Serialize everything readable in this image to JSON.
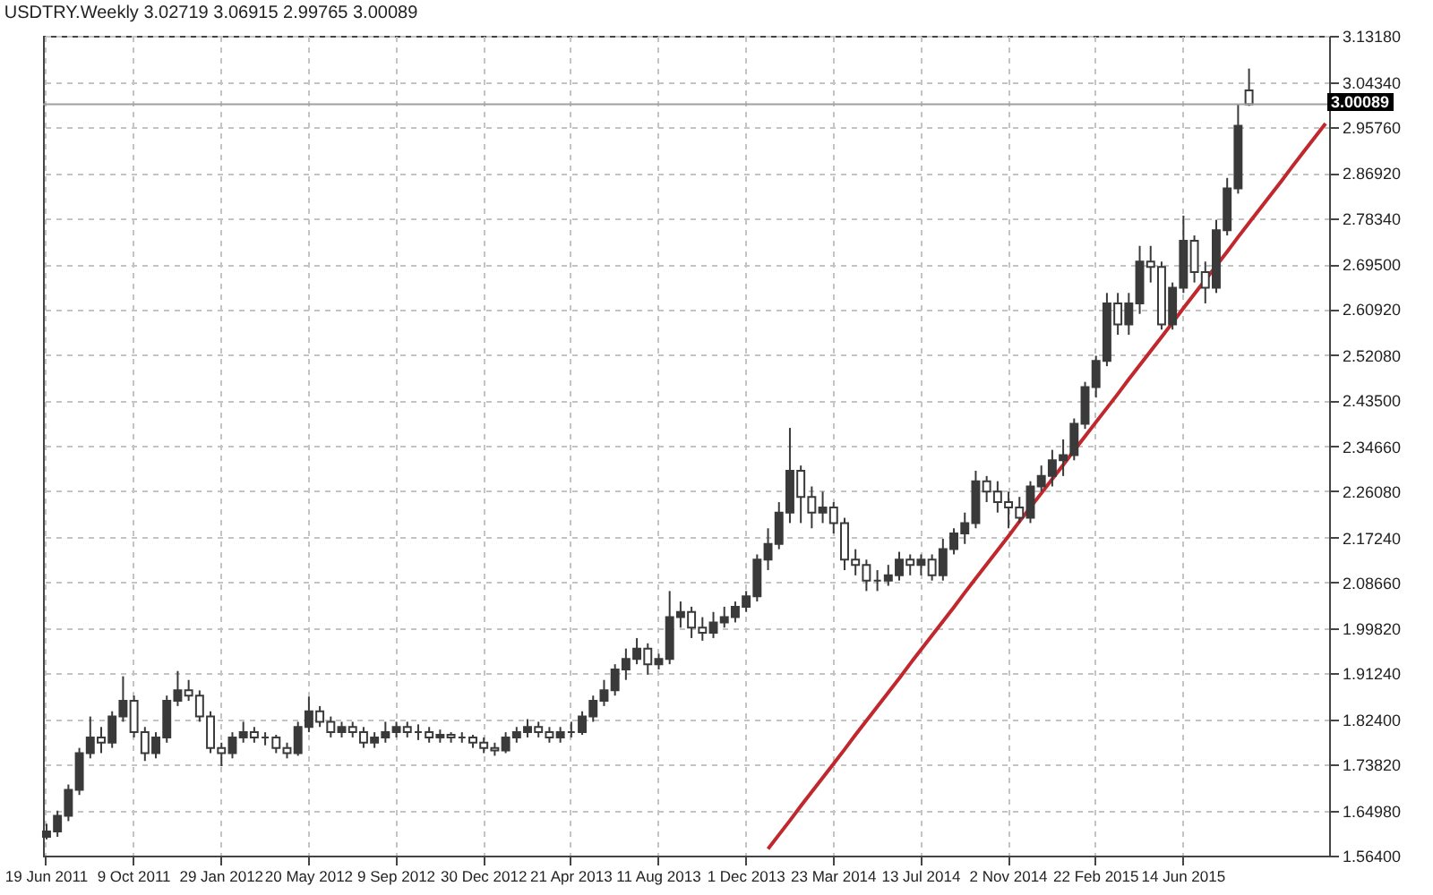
{
  "chart_data": {
    "type": "candlestick",
    "title": "USDTRY.Weekly 3.02719 3.06915 2.99765 3.00089",
    "categories": [
      "19 Jun 2011",
      null,
      null,
      null,
      null,
      null,
      null,
      null,
      "9 Oct 2011",
      null,
      null,
      null,
      null,
      null,
      null,
      null,
      "29 Jan 2012",
      null,
      null,
      null,
      null,
      null,
      null,
      null,
      "20 May 2012",
      null,
      null,
      null,
      null,
      null,
      null,
      null,
      "9 Sep 2012",
      null,
      null,
      null,
      null,
      null,
      null,
      null,
      "30 Dec 2012",
      null,
      null,
      null,
      null,
      null,
      null,
      null,
      "21 Apr 2013",
      null,
      null,
      null,
      null,
      null,
      null,
      null,
      "11 Aug 2013",
      null,
      null,
      null,
      null,
      null,
      null,
      null,
      "1 Dec 2013",
      null,
      null,
      null,
      null,
      null,
      null,
      null,
      "23 Mar 2014",
      null,
      null,
      null,
      null,
      null,
      null,
      null,
      "13 Jul 2014",
      null,
      null,
      null,
      null,
      null,
      null,
      null,
      "2 Nov 2014",
      null,
      null,
      null,
      null,
      null,
      null,
      null,
      "22 Feb 2015",
      null,
      null,
      null,
      null,
      null,
      null,
      null,
      "14 Jun 2015",
      null,
      null,
      null,
      null,
      null,
      null,
      null,
      null,
      null,
      null,
      null,
      null,
      null
    ],
    "series": [
      {
        "type": "candlestick",
        "color": "#3a3a3a",
        "ohlc": [
          [
            1.6,
            1.625,
            1.595,
            1.61
          ],
          [
            1.61,
            1.65,
            1.6,
            1.64
          ],
          [
            1.64,
            1.7,
            1.63,
            1.69
          ],
          [
            1.69,
            1.77,
            1.68,
            1.76
          ],
          [
            1.76,
            1.83,
            1.75,
            1.79
          ],
          [
            1.79,
            1.81,
            1.76,
            1.78
          ],
          [
            1.78,
            1.84,
            1.77,
            1.83
          ],
          [
            1.83,
            1.907,
            1.82,
            1.86
          ],
          [
            1.86,
            1.87,
            1.79,
            1.8
          ],
          [
            1.8,
            1.81,
            1.745,
            1.76
          ],
          [
            1.76,
            1.8,
            1.75,
            1.79
          ],
          [
            1.79,
            1.87,
            1.78,
            1.86
          ],
          [
            1.86,
            1.917,
            1.85,
            1.88
          ],
          [
            1.88,
            1.9,
            1.86,
            1.87
          ],
          [
            1.87,
            1.88,
            1.82,
            1.83
          ],
          [
            1.83,
            1.84,
            1.76,
            1.77
          ],
          [
            1.77,
            1.78,
            1.735,
            1.76
          ],
          [
            1.76,
            1.8,
            1.75,
            1.79
          ],
          [
            1.79,
            1.82,
            1.78,
            1.8
          ],
          [
            1.8,
            1.81,
            1.78,
            1.79
          ],
          [
            1.79,
            1.8,
            1.775,
            1.79
          ],
          [
            1.79,
            1.795,
            1.76,
            1.77
          ],
          [
            1.77,
            1.78,
            1.75,
            1.76
          ],
          [
            1.76,
            1.82,
            1.755,
            1.81
          ],
          [
            1.81,
            1.868,
            1.8,
            1.84
          ],
          [
            1.84,
            1.85,
            1.81,
            1.82
          ],
          [
            1.82,
            1.83,
            1.79,
            1.8
          ],
          [
            1.8,
            1.82,
            1.79,
            1.81
          ],
          [
            1.81,
            1.82,
            1.79,
            1.8
          ],
          [
            1.8,
            1.81,
            1.77,
            1.78
          ],
          [
            1.78,
            1.8,
            1.77,
            1.79
          ],
          [
            1.79,
            1.82,
            1.78,
            1.8
          ],
          [
            1.8,
            1.82,
            1.79,
            1.81
          ],
          [
            1.81,
            1.82,
            1.79,
            1.8
          ],
          [
            1.8,
            1.815,
            1.785,
            1.8
          ],
          [
            1.8,
            1.81,
            1.78,
            1.79
          ],
          [
            1.79,
            1.805,
            1.78,
            1.795
          ],
          [
            1.795,
            1.8,
            1.78,
            1.79
          ],
          [
            1.79,
            1.8,
            1.78,
            1.79
          ],
          [
            1.79,
            1.795,
            1.77,
            1.78
          ],
          [
            1.78,
            1.79,
            1.76,
            1.77
          ],
          [
            1.77,
            1.78,
            1.755,
            1.765
          ],
          [
            1.765,
            1.8,
            1.76,
            1.79
          ],
          [
            1.79,
            1.81,
            1.78,
            1.8
          ],
          [
            1.8,
            1.825,
            1.79,
            1.81
          ],
          [
            1.81,
            1.82,
            1.79,
            1.8
          ],
          [
            1.8,
            1.81,
            1.78,
            1.79
          ],
          [
            1.79,
            1.81,
            1.78,
            1.8
          ],
          [
            1.8,
            1.82,
            1.79,
            1.8
          ],
          [
            1.8,
            1.84,
            1.795,
            1.83
          ],
          [
            1.83,
            1.87,
            1.82,
            1.86
          ],
          [
            1.86,
            1.9,
            1.85,
            1.88
          ],
          [
            1.88,
            1.93,
            1.87,
            1.92
          ],
          [
            1.92,
            1.96,
            1.9,
            1.94
          ],
          [
            1.94,
            1.98,
            1.93,
            1.96
          ],
          [
            1.96,
            1.97,
            1.91,
            1.93
          ],
          [
            1.93,
            1.95,
            1.92,
            1.94
          ],
          [
            1.94,
            2.07,
            1.93,
            2.02
          ],
          [
            2.02,
            2.05,
            2.0,
            2.03
          ],
          [
            2.03,
            2.04,
            1.98,
            2.0
          ],
          [
            2.0,
            2.02,
            1.975,
            1.99
          ],
          [
            1.99,
            2.03,
            1.98,
            2.01
          ],
          [
            2.01,
            2.04,
            2.0,
            2.02
          ],
          [
            2.02,
            2.05,
            2.01,
            2.04
          ],
          [
            2.04,
            2.07,
            2.03,
            2.06
          ],
          [
            2.06,
            2.14,
            2.05,
            2.13
          ],
          [
            2.13,
            2.19,
            2.11,
            2.16
          ],
          [
            2.16,
            2.24,
            2.15,
            2.22
          ],
          [
            2.22,
            2.382,
            2.2,
            2.3
          ],
          [
            2.3,
            2.31,
            2.2,
            2.25
          ],
          [
            2.25,
            2.27,
            2.19,
            2.22
          ],
          [
            2.22,
            2.26,
            2.2,
            2.23
          ],
          [
            2.23,
            2.24,
            2.18,
            2.2
          ],
          [
            2.2,
            2.21,
            2.11,
            2.13
          ],
          [
            2.13,
            2.15,
            2.1,
            2.12
          ],
          [
            2.12,
            2.13,
            2.07,
            2.09
          ],
          [
            2.09,
            2.11,
            2.07,
            2.09
          ],
          [
            2.09,
            2.12,
            2.08,
            2.1
          ],
          [
            2.1,
            2.145,
            2.09,
            2.13
          ],
          [
            2.13,
            2.14,
            2.1,
            2.12
          ],
          [
            2.12,
            2.14,
            2.1,
            2.13
          ],
          [
            2.13,
            2.14,
            2.09,
            2.1
          ],
          [
            2.1,
            2.17,
            2.09,
            2.15
          ],
          [
            2.15,
            2.19,
            2.14,
            2.18
          ],
          [
            2.18,
            2.22,
            2.16,
            2.2
          ],
          [
            2.2,
            2.3,
            2.19,
            2.28
          ],
          [
            2.28,
            2.29,
            2.24,
            2.26
          ],
          [
            2.26,
            2.28,
            2.22,
            2.24
          ],
          [
            2.24,
            2.26,
            2.19,
            2.23
          ],
          [
            2.23,
            2.25,
            2.2,
            2.21
          ],
          [
            2.21,
            2.28,
            2.2,
            2.27
          ],
          [
            2.27,
            2.31,
            2.26,
            2.29
          ],
          [
            2.29,
            2.34,
            2.27,
            2.32
          ],
          [
            2.32,
            2.36,
            2.29,
            2.33
          ],
          [
            2.33,
            2.4,
            2.32,
            2.39
          ],
          [
            2.39,
            2.47,
            2.38,
            2.46
          ],
          [
            2.46,
            2.52,
            2.44,
            2.51
          ],
          [
            2.51,
            2.64,
            2.5,
            2.62
          ],
          [
            2.62,
            2.64,
            2.56,
            2.58
          ],
          [
            2.58,
            2.64,
            2.56,
            2.62
          ],
          [
            2.62,
            2.73,
            2.6,
            2.7
          ],
          [
            2.7,
            2.73,
            2.66,
            2.69
          ],
          [
            2.69,
            2.7,
            2.57,
            2.58
          ],
          [
            2.58,
            2.66,
            2.57,
            2.65
          ],
          [
            2.65,
            2.788,
            2.64,
            2.74
          ],
          [
            2.74,
            2.75,
            2.66,
            2.68
          ],
          [
            2.68,
            2.7,
            2.62,
            2.65
          ],
          [
            2.65,
            2.78,
            2.64,
            2.76
          ],
          [
            2.76,
            2.86,
            2.75,
            2.84
          ],
          [
            2.84,
            3.0,
            2.83,
            2.96
          ],
          [
            3.02719,
            3.06915,
            2.99765,
            3.00089
          ],
          null,
          null,
          null,
          null,
          null,
          null,
          null
        ]
      },
      {
        "type": "line",
        "color": "#c0282d",
        "values": [
          null,
          null,
          null,
          null,
          null,
          null,
          null,
          null,
          null,
          null,
          null,
          null,
          null,
          null,
          null,
          null,
          null,
          null,
          null,
          null,
          null,
          null,
          null,
          null,
          null,
          null,
          null,
          null,
          null,
          null,
          null,
          null,
          null,
          null,
          null,
          null,
          null,
          null,
          null,
          null,
          null,
          null,
          null,
          null,
          null,
          null,
          null,
          null,
          null,
          null,
          null,
          null,
          null,
          null,
          null,
          null,
          null,
          null,
          null,
          null,
          null,
          null,
          null,
          null,
          null,
          null,
          1.577,
          1.604,
          1.631,
          1.659,
          1.686,
          1.713,
          1.74,
          1.767,
          1.795,
          1.822,
          1.849,
          1.876,
          1.903,
          1.931,
          1.958,
          1.985,
          2.012,
          2.039,
          2.067,
          2.094,
          2.121,
          2.148,
          2.175,
          2.203,
          2.23,
          2.257,
          2.284,
          2.311,
          2.339,
          2.366,
          2.393,
          2.42,
          2.447,
          2.475,
          2.502,
          2.529,
          2.556,
          2.583,
          2.611,
          2.638,
          2.665,
          2.692,
          2.719,
          2.747,
          2.774,
          2.801,
          2.828,
          2.855,
          2.883,
          2.91,
          2.937,
          2.964
        ]
      }
    ],
    "ylim": [
      1.564,
      3.1318
    ],
    "yticks": [
      {
        "value": 1.564,
        "label": "1.56400"
      },
      {
        "value": 1.6498,
        "label": "1.64980"
      },
      {
        "value": 1.7382,
        "label": "1.73820"
      },
      {
        "value": 1.824,
        "label": "1.82400"
      },
      {
        "value": 1.9124,
        "label": "1.91240"
      },
      {
        "value": 1.9982,
        "label": "1.99820"
      },
      {
        "value": 2.0866,
        "label": "2.08660"
      },
      {
        "value": 2.1724,
        "label": "2.17240"
      },
      {
        "value": 2.2608,
        "label": "2.26080"
      },
      {
        "value": 2.3466,
        "label": "2.34660"
      },
      {
        "value": 2.435,
        "label": "2.43500"
      },
      {
        "value": 2.5208,
        "label": "2.52080"
      },
      {
        "value": 2.6092,
        "label": "2.60920"
      },
      {
        "value": 2.695,
        "label": "2.69500"
      },
      {
        "value": 2.7834,
        "label": "2.78340"
      },
      {
        "value": 2.8692,
        "label": "2.86920"
      },
      {
        "value": 2.9576,
        "label": "2.95760"
      },
      {
        "value": 3.0434,
        "label": "3.04340"
      },
      {
        "value": 3.1318,
        "label": "3.13180"
      }
    ],
    "ref_lines": [
      {
        "axis": "y",
        "value": 3.00089,
        "label": "3.00089",
        "color": "#a0a0a0"
      }
    ],
    "grid": true
  }
}
